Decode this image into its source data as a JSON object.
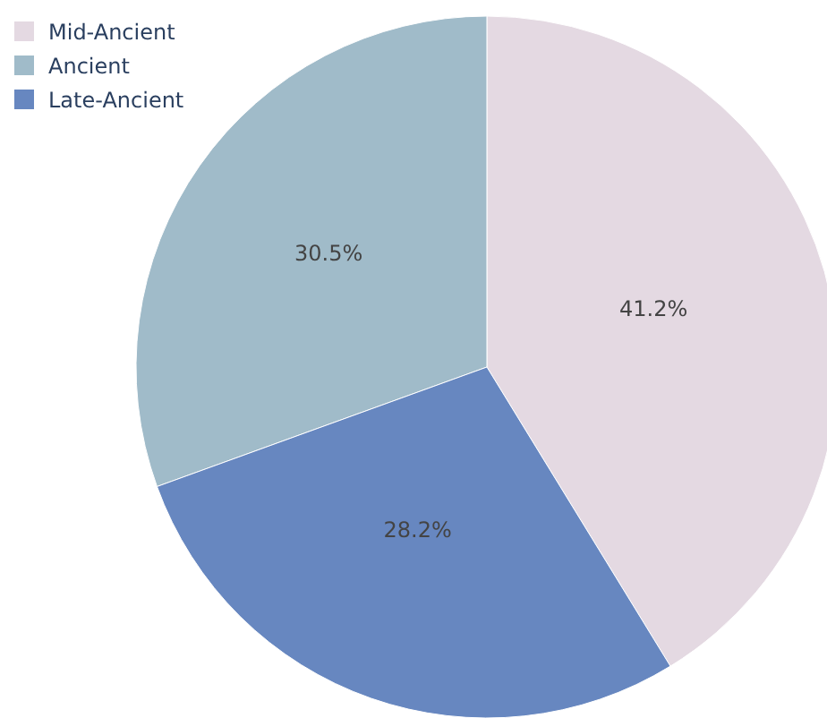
{
  "chart_data": {
    "type": "pie",
    "categories": [
      "Mid-Ancient",
      "Ancient",
      "Late-Ancient"
    ],
    "values": [
      41.2,
      30.5,
      28.2
    ],
    "colors": [
      "#e4d9e2",
      "#a0bbc9",
      "#6787c0"
    ],
    "value_labels": [
      "41.2%",
      "30.5%",
      "28.2%"
    ],
    "legend": "top left"
  }
}
